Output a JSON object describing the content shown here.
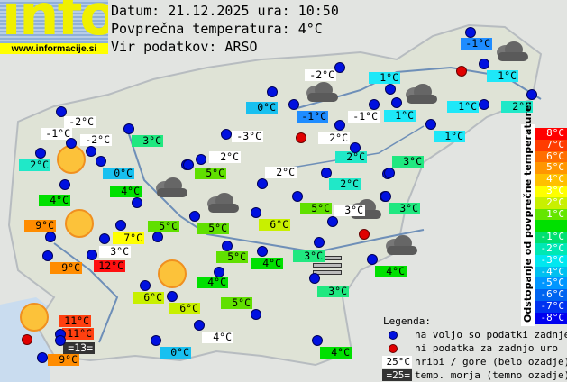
{
  "logo": {
    "text": "info",
    "url": "www.informacije.si"
  },
  "header": {
    "date_line": "Datum: 21.12.2025 ura: 10:50",
    "avg_line": "Povprečna temperatura: 4°C",
    "source_line": "Vir podatkov: ARSO"
  },
  "stations": [
    {
      "text": "-2°C",
      "bg": "#ffffff"
    },
    {
      "text": "-1°C",
      "bg": "#ffffff"
    },
    {
      "text": "-2°C",
      "bg": "#ffffff"
    },
    {
      "text": "3°C",
      "bg": "#20e880"
    },
    {
      "text": "2°C",
      "bg": "#20e8c8"
    },
    {
      "text": "0°C",
      "bg": "#18c0f0"
    },
    {
      "text": "4°C",
      "bg": "#00e000"
    },
    {
      "text": "4°C",
      "bg": "#00e000"
    },
    {
      "text": "9°C",
      "bg": "#ff8c00"
    },
    {
      "text": "7°C",
      "bg": "#ffff00"
    },
    {
      "text": "5°C",
      "bg": "#60e000"
    },
    {
      "text": "5°C",
      "bg": "#60e000"
    },
    {
      "text": "5°C",
      "bg": "#60e000"
    },
    {
      "text": "3°C",
      "bg": "#ffffff"
    },
    {
      "text": "9°C",
      "bg": "#ff8c00"
    },
    {
      "text": "12°C",
      "bg": "#ff1010"
    },
    {
      "text": "6°C",
      "bg": "#c8f000"
    },
    {
      "text": "6°C",
      "bg": "#c8f000"
    },
    {
      "text": "11°C",
      "bg": "#ff4010"
    },
    {
      "text": "11°C",
      "bg": "#ff4010"
    },
    {
      "text": "=13=",
      "bg": "#333333",
      "dark": true
    },
    {
      "text": "9°C",
      "bg": "#ff8c00"
    },
    {
      "text": "0°C",
      "bg": "#18c0f0"
    },
    {
      "text": "4°C",
      "bg": "#ffffff"
    },
    {
      "text": "5°C",
      "bg": "#60e000"
    },
    {
      "text": "4°C",
      "bg": "#00e000"
    },
    {
      "text": "5°C",
      "bg": "#60e000"
    },
    {
      "text": "4°C",
      "bg": "#00e000"
    },
    {
      "text": "3°C",
      "bg": "#20e880"
    },
    {
      "text": "3°C",
      "bg": "#20e880"
    },
    {
      "text": "4°C",
      "bg": "#00e000"
    },
    {
      "text": "-2°C",
      "bg": "#ffffff"
    },
    {
      "text": "0°C",
      "bg": "#18c0f0"
    },
    {
      "text": "-1°C",
      "bg": "#1e8cff"
    },
    {
      "text": "-1°C",
      "bg": "#ffffff"
    },
    {
      "text": "-3°C",
      "bg": "#ffffff"
    },
    {
      "text": "2°C",
      "bg": "#ffffff"
    },
    {
      "text": "2°C",
      "bg": "#ffffff"
    },
    {
      "text": "2°C",
      "bg": "#20e8c8"
    },
    {
      "text": "2°C",
      "bg": "#ffffff"
    },
    {
      "text": "2°C",
      "bg": "#20e8c8"
    },
    {
      "text": "5°C",
      "bg": "#60e000"
    },
    {
      "text": "3°C",
      "bg": "#ffffff"
    },
    {
      "text": "6°C",
      "bg": "#c8f000"
    },
    {
      "text": "-1°C",
      "bg": "#1e8cff"
    },
    {
      "text": "1°C",
      "bg": "#1ee8f8"
    },
    {
      "text": "1°C",
      "bg": "#1ee8f8"
    },
    {
      "text": "1°C",
      "bg": "#1ee8f8"
    },
    {
      "text": "2°C",
      "bg": "#20e8c8"
    },
    {
      "text": "1°C",
      "bg": "#1ee8f8"
    },
    {
      "text": "1°C",
      "bg": "#1ee8f8"
    },
    {
      "text": "3°C",
      "bg": "#20e880"
    },
    {
      "text": "3°C",
      "bg": "#20e880"
    },
    {
      "text": "4°C",
      "bg": "#00e000"
    }
  ],
  "dots": [
    "ok",
    "ok",
    "ok",
    "ok",
    "ok",
    "ok",
    "ok",
    "ok",
    "ok",
    "ok",
    "ok",
    "ok",
    "ok",
    "ok",
    "ok",
    "ok",
    "ok",
    "ok",
    "ok",
    "ok",
    "ok",
    "ok",
    "ok",
    "ok",
    "no-data",
    "ok",
    "ok",
    "ok",
    "ok",
    "ok",
    "ok",
    "ok",
    "ok",
    "ok",
    "ok",
    "ok",
    "ok",
    "ok",
    "ok",
    "ok",
    "ok",
    "no-data",
    "ok",
    "ok",
    "no-data",
    "ok",
    "ok",
    "ok",
    "ok",
    "ok",
    "ok",
    "ok",
    "ok",
    "ok",
    "ok",
    "ok",
    "ok",
    "ok"
  ],
  "weather_icons": {
    "sun": "sun-icon",
    "cloud": "cloud-icon",
    "fog": "fog-icon"
  },
  "scale": {
    "title": "Odstopanje od povprečne temperature:",
    "steps": [
      {
        "label": "8°C",
        "color": "#ff0000"
      },
      {
        "label": "7°C",
        "color": "#ff3c00"
      },
      {
        "label": "6°C",
        "color": "#ff6e00"
      },
      {
        "label": "5°C",
        "color": "#ff9600"
      },
      {
        "label": "4°C",
        "color": "#ffc000"
      },
      {
        "label": "3°C",
        "color": "#ffff00"
      },
      {
        "label": "2°C",
        "color": "#c8f000"
      },
      {
        "label": "1°C",
        "color": "#64e600"
      },
      {
        "label": "",
        "color": "#00e000"
      },
      {
        "label": "-1°C",
        "color": "#00e070"
      },
      {
        "label": "-2°C",
        "color": "#00e8b4"
      },
      {
        "label": "-3°C",
        "color": "#00e8f0"
      },
      {
        "label": "-4°C",
        "color": "#00c0f0"
      },
      {
        "label": "-5°C",
        "color": "#0096ff"
      },
      {
        "label": "-6°C",
        "color": "#0064f0"
      },
      {
        "label": "-7°C",
        "color": "#0032f0"
      },
      {
        "label": "-8°C",
        "color": "#0000f0"
      }
    ]
  },
  "legend": {
    "title": "Legenda:",
    "available": "na voljo so podatki zadnje ure",
    "no_data": "ni podatka za zadnjo uro",
    "mountain_sample": "25°C",
    "mountain": "hribi / gore (belo ozadje)",
    "sea_sample": "=25=",
    "sea": "temp. morja (temno ozadje)"
  }
}
